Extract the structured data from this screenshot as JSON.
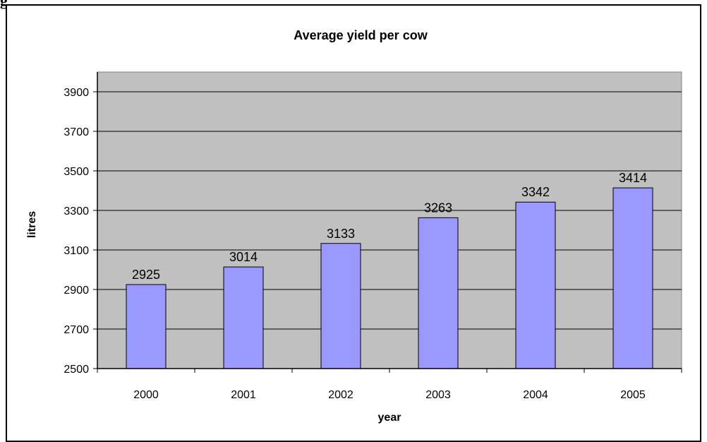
{
  "page": {
    "heading_fragment": "g"
  },
  "chart_data": {
    "type": "bar",
    "title": "Average yield per cow",
    "xlabel": "year",
    "ylabel": "litres",
    "categories": [
      "2000",
      "2001",
      "2002",
      "2003",
      "2004",
      "2005"
    ],
    "values": [
      2925,
      3014,
      3133,
      3263,
      3342,
      3414
    ],
    "data_labels": [
      "2925",
      "3014",
      "3133",
      "3263",
      "3342",
      "3414"
    ],
    "ylim": [
      2500,
      4000
    ],
    "yticks": [
      "2500",
      "2700",
      "2900",
      "3100",
      "3300",
      "3500",
      "3700",
      "3900"
    ],
    "grid": true,
    "legend": "none",
    "colors": {
      "bar": "#9999ff",
      "plot_bg": "#c0c0c0",
      "grid": "#000000"
    }
  }
}
